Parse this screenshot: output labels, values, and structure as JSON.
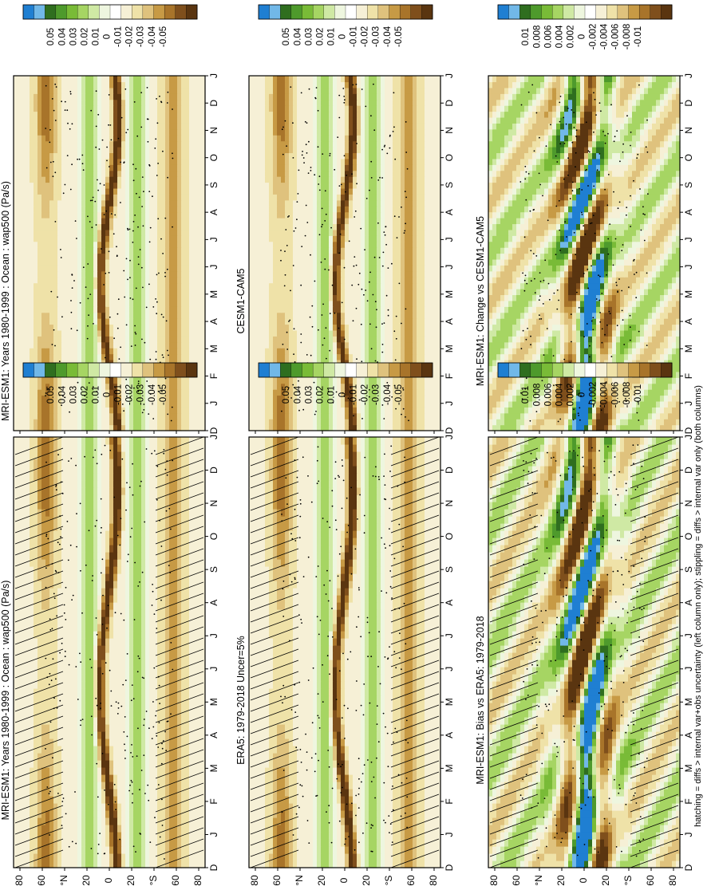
{
  "footnote": "hatching = diffs > internal var+obs uncertainty (left column only); stippling = diffs > internal var only (both columns)",
  "chart_data": [
    {
      "type": "heatmap",
      "title": "MRI-ESM1: Years 1980-1999 : Ocean : wap500 (Pa/s)",
      "xlabel": "",
      "ylabel": "",
      "x_ticks": [
        "D",
        "J",
        "F",
        "M",
        "A",
        "M",
        "J",
        "J",
        "A",
        "S",
        "O",
        "N",
        "D",
        "J"
      ],
      "y_ticks": [
        "80",
        "60",
        "°N",
        "20",
        "0",
        "20",
        "°S",
        "60",
        "80"
      ],
      "colorbar": {
        "labels": [
          "0.05",
          "0.04",
          "0.03",
          "0.02",
          "0.01",
          "0",
          "-0.01",
          "-0.02",
          "-0.03",
          "-0.04",
          "-0.05"
        ]
      },
      "features": {
        "itcz_band_lat": 8,
        "hatching": true,
        "stippling": true
      }
    },
    {
      "type": "heatmap",
      "title": "MRI-ESM1: Years 1980-1999 : Ocean : wap500 (Pa/s)",
      "xlabel": "",
      "ylabel": "",
      "x_ticks": [
        "D",
        "J",
        "F",
        "M",
        "A",
        "M",
        "J",
        "J",
        "A",
        "S",
        "O",
        "N",
        "D",
        "J"
      ],
      "y_ticks": [
        "80",
        "60",
        "°N",
        "20",
        "0",
        "20",
        "°S",
        "60",
        "80"
      ],
      "colorbar": {
        "labels": [
          "0.05",
          "0.04",
          "0.03",
          "0.02",
          "0.01",
          "0",
          "-0.01",
          "-0.02",
          "-0.03",
          "-0.04",
          "-0.05"
        ]
      },
      "features": {
        "itcz_band_lat": 6,
        "hatching": false,
        "stippling": true
      }
    },
    {
      "type": "heatmap",
      "title": "ERA5: 1979-2018 Uncer=5%",
      "xlabel": "",
      "ylabel": "",
      "x_ticks": [
        "D",
        "J",
        "F",
        "M",
        "A",
        "M",
        "J",
        "J",
        "A",
        "S",
        "O",
        "N",
        "D",
        "J"
      ],
      "y_ticks": [
        "80",
        "60",
        "°N",
        "20",
        "0",
        "20",
        "°S",
        "60",
        "80"
      ],
      "colorbar": {
        "labels": [
          "0.05",
          "0.04",
          "0.03",
          "0.02",
          "0.01",
          "0",
          "-0.01",
          "-0.02",
          "-0.03",
          "-0.04",
          "-0.05"
        ]
      },
      "features": {
        "itcz_band_lat": 8,
        "hatching": true,
        "stippling": true
      }
    },
    {
      "type": "heatmap",
      "title": "CESM1-CAM5",
      "xlabel": "",
      "ylabel": "",
      "x_ticks": [
        "D",
        "J",
        "F",
        "M",
        "A",
        "M",
        "J",
        "J",
        "A",
        "S",
        "O",
        "N",
        "D",
        "J"
      ],
      "y_ticks": [
        "80",
        "60",
        "°N",
        "20",
        "0",
        "20",
        "°S",
        "60",
        "80"
      ],
      "colorbar": {
        "labels": [
          "0.05",
          "0.04",
          "0.03",
          "0.02",
          "0.01",
          "0",
          "-0.01",
          "-0.02",
          "-0.03",
          "-0.04",
          "-0.05"
        ]
      },
      "features": {
        "itcz_band_lat": 7,
        "hatching": false,
        "stippling": true
      }
    },
    {
      "type": "heatmap",
      "title": "MRI-ESM1: Bias vs ERA5: 1979-2018",
      "xlabel": "",
      "ylabel": "",
      "x_ticks": [
        "D",
        "J",
        "F",
        "M",
        "A",
        "M",
        "J",
        "J",
        "A",
        "S",
        "O",
        "N",
        "D",
        "J"
      ],
      "y_ticks": [
        "80",
        "60",
        "°N",
        "20",
        "0",
        "20",
        "°S",
        "60",
        "80"
      ],
      "colorbar": {
        "labels": [
          "0.01",
          "0.008",
          "0.006",
          "0.004",
          "0.002",
          "0",
          "-0.002",
          "-0.004",
          "-0.006",
          "-0.008",
          "-0.01"
        ]
      },
      "features": {
        "itcz_band_lat": 10,
        "hatching": true,
        "stippling": true
      }
    },
    {
      "type": "heatmap",
      "title": "MRI-ESM1: Change vs CESM1-CAM5",
      "xlabel": "",
      "ylabel": "",
      "x_ticks": [
        "D",
        "J",
        "F",
        "M",
        "A",
        "M",
        "J",
        "J",
        "A",
        "S",
        "O",
        "N",
        "D",
        "J"
      ],
      "y_ticks": [
        "80",
        "60",
        "°N",
        "20",
        "0",
        "20",
        "°S",
        "60",
        "80"
      ],
      "colorbar": {
        "labels": [
          "0.01",
          "0.008",
          "0.006",
          "0.004",
          "0.002",
          "0",
          "-0.002",
          "-0.004",
          "-0.006",
          "-0.008",
          "-0.01"
        ]
      },
      "features": {
        "itcz_band_lat": 10,
        "hatching": false,
        "stippling": true
      }
    }
  ]
}
